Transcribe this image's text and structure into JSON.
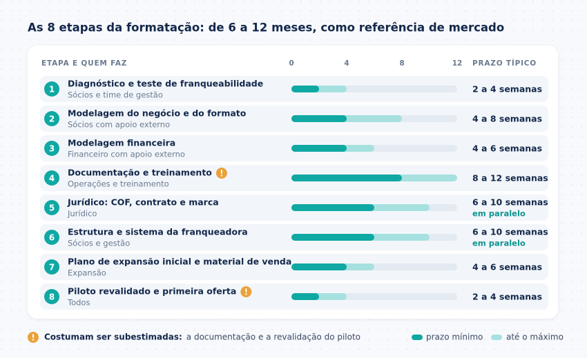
{
  "chart_data": {
    "type": "range_bar",
    "title": "As 8 etapas da formatação: de 6 a 12 meses, como referência de mercado",
    "columns": {
      "stage": "ETAPA E QUEM FAZ",
      "duration": "PRAZO TÍPICO"
    },
    "numbers": [
      1,
      2,
      3,
      4,
      5,
      6,
      7,
      8
    ],
    "categories": [
      "Diagnóstico e teste de franqueabilidade",
      "Modelagem do negócio e do formato",
      "Modelagem financeira",
      "Documentação e treinamento",
      "Jurídico: COF, contrato e marca",
      "Estrutura e sistema da franqueadora",
      "Plano de expansão inicial e material de venda",
      "Piloto revalidado e primeira oferta"
    ],
    "owners": [
      "Sócios e time de gestão",
      "Sócios com apoio externo",
      "Financeiro com apoio externo",
      "Operações e treinamento",
      "Jurídico",
      "Sócios e gestão",
      "Expansão",
      "Todos"
    ],
    "duration_labels": [
      "2 a 4 semanas",
      "4 a 8 semanas",
      "4 a 6 semanas",
      "8 a 12 semanas",
      "6 a 10 semanas",
      "6 a 10 semanas",
      "4 a 6 semanas",
      "2 a 4 semanas"
    ],
    "notes": [
      null,
      null,
      null,
      null,
      "em paralelo",
      "em paralelo",
      null,
      null
    ],
    "warnings": [
      false,
      false,
      false,
      true,
      false,
      false,
      false,
      true
    ],
    "xlim": [
      0,
      12
    ],
    "xticks": [
      0,
      4,
      8,
      12
    ],
    "series": [
      {
        "name": "prazo mínimo",
        "color": "#0fa8a3",
        "values": [
          2,
          4,
          4,
          8,
          6,
          6,
          4,
          2
        ]
      },
      {
        "name": "até o máximo",
        "color": "#a6e1e0",
        "values": [
          4,
          8,
          6,
          12,
          10,
          10,
          6,
          4
        ]
      }
    ],
    "footnote": {
      "label": "Costumam ser subestimadas:",
      "text": "a documentação e a revalidação do piloto"
    }
  }
}
